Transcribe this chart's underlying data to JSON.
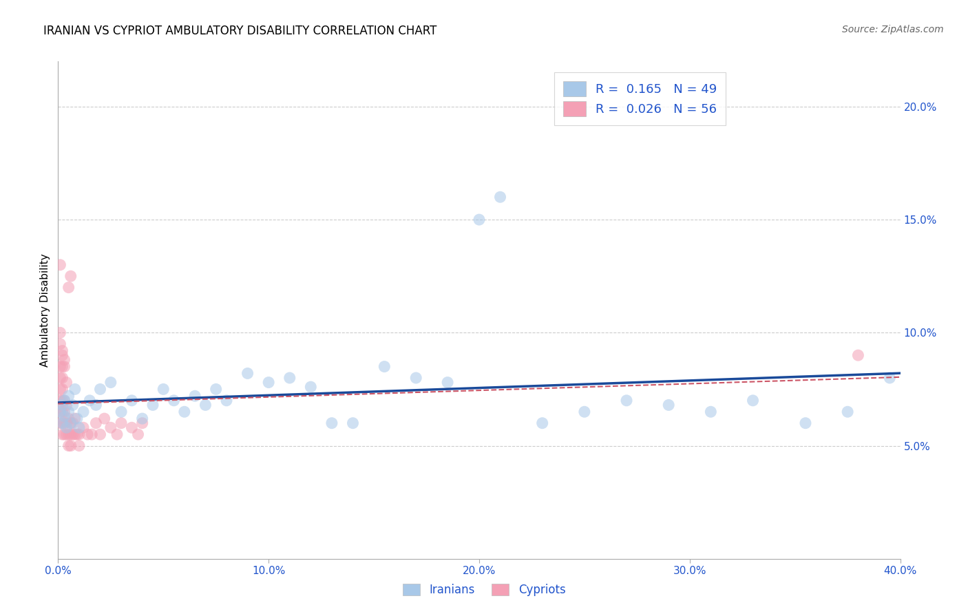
{
  "title": "IRANIAN VS CYPRIOT AMBULATORY DISABILITY CORRELATION CHART",
  "source": "Source: ZipAtlas.com",
  "ylabel": "Ambulatory Disability",
  "xlim": [
    0.0,
    0.4
  ],
  "ylim": [
    0.0,
    0.22
  ],
  "xticks": [
    0.0,
    0.1,
    0.2,
    0.3,
    0.4
  ],
  "xtick_labels": [
    "0.0%",
    "10.0%",
    "20.0%",
    "30.0%",
    "40.0%"
  ],
  "yticks_right": [
    0.05,
    0.1,
    0.15,
    0.2
  ],
  "ytick_labels_right": [
    "5.0%",
    "10.0%",
    "15.0%",
    "20.0%"
  ],
  "iranians_R": 0.165,
  "iranians_N": 49,
  "cypriots_R": 0.026,
  "cypriots_N": 56,
  "iranian_color": "#a8c8e8",
  "cypriot_color": "#f4a0b5",
  "trend_iranian_color": "#1a4a9a",
  "trend_cypriot_color": "#cc5566",
  "legend_text_color": "#2255cc",
  "background_color": "#ffffff",
  "grid_color": "#cccccc",
  "iranians_x": [
    0.001,
    0.002,
    0.002,
    0.003,
    0.003,
    0.004,
    0.005,
    0.005,
    0.006,
    0.007,
    0.008,
    0.009,
    0.01,
    0.012,
    0.015,
    0.018,
    0.02,
    0.025,
    0.03,
    0.035,
    0.04,
    0.045,
    0.05,
    0.055,
    0.06,
    0.065,
    0.07,
    0.075,
    0.08,
    0.09,
    0.1,
    0.11,
    0.12,
    0.13,
    0.14,
    0.155,
    0.17,
    0.185,
    0.2,
    0.21,
    0.23,
    0.25,
    0.27,
    0.29,
    0.31,
    0.33,
    0.355,
    0.375,
    0.395
  ],
  "iranians_y": [
    0.065,
    0.06,
    0.068,
    0.063,
    0.07,
    0.058,
    0.065,
    0.072,
    0.06,
    0.068,
    0.075,
    0.062,
    0.058,
    0.065,
    0.07,
    0.068,
    0.075,
    0.078,
    0.065,
    0.07,
    0.062,
    0.068,
    0.075,
    0.07,
    0.065,
    0.072,
    0.068,
    0.075,
    0.07,
    0.082,
    0.078,
    0.08,
    0.076,
    0.06,
    0.06,
    0.085,
    0.08,
    0.078,
    0.15,
    0.16,
    0.06,
    0.065,
    0.07,
    0.068,
    0.065,
    0.07,
    0.06,
    0.065,
    0.08
  ],
  "cypriots_x": [
    0.001,
    0.001,
    0.001,
    0.001,
    0.001,
    0.001,
    0.002,
    0.002,
    0.002,
    0.002,
    0.002,
    0.002,
    0.002,
    0.003,
    0.003,
    0.003,
    0.003,
    0.004,
    0.004,
    0.004,
    0.005,
    0.005,
    0.005,
    0.006,
    0.006,
    0.006,
    0.007,
    0.007,
    0.008,
    0.008,
    0.009,
    0.01,
    0.01,
    0.012,
    0.014,
    0.016,
    0.018,
    0.02,
    0.022,
    0.025,
    0.028,
    0.03,
    0.035,
    0.038,
    0.04,
    0.001,
    0.002,
    0.002,
    0.003,
    0.003,
    0.004,
    0.005,
    0.006,
    0.001,
    0.001,
    0.38
  ],
  "cypriots_y": [
    0.06,
    0.065,
    0.07,
    0.075,
    0.08,
    0.085,
    0.055,
    0.06,
    0.065,
    0.07,
    0.075,
    0.08,
    0.085,
    0.055,
    0.06,
    0.065,
    0.07,
    0.055,
    0.06,
    0.068,
    0.05,
    0.055,
    0.062,
    0.05,
    0.055,
    0.06,
    0.055,
    0.06,
    0.055,
    0.062,
    0.055,
    0.05,
    0.055,
    0.058,
    0.055,
    0.055,
    0.06,
    0.055,
    0.062,
    0.058,
    0.055,
    0.06,
    0.058,
    0.055,
    0.06,
    0.095,
    0.09,
    0.092,
    0.085,
    0.088,
    0.078,
    0.12,
    0.125,
    0.1,
    0.13,
    0.09
  ],
  "marker_size": 150,
  "marker_alpha": 0.55,
  "trend_iranian_slope": 0.028,
  "trend_iranian_intercept": 0.062,
  "trend_cypriot_slope": 0.02,
  "trend_cypriot_intercept": 0.06
}
